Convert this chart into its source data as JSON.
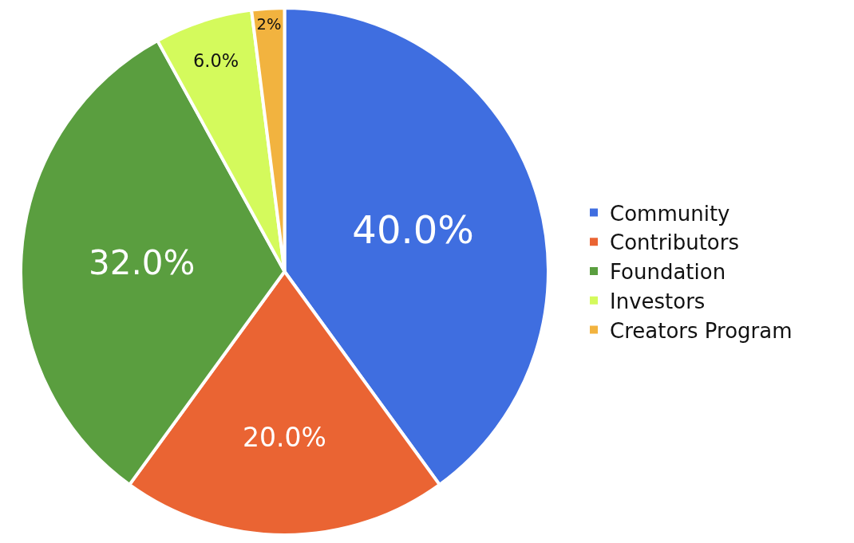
{
  "chart_data": {
    "type": "pie",
    "categories": [
      "Community",
      "Contributors",
      "Foundation",
      "Investors",
      "Creators Program"
    ],
    "values": [
      40,
      20,
      32,
      6,
      2
    ],
    "colors": [
      "#3f6ee0",
      "#ea6433",
      "#5a9e3f",
      "#d4fa5c",
      "#f2b33f"
    ],
    "value_labels": [
      "40.0%",
      "20.0%",
      "32.0%",
      "6.0%",
      "2%"
    ],
    "legend": "right"
  }
}
